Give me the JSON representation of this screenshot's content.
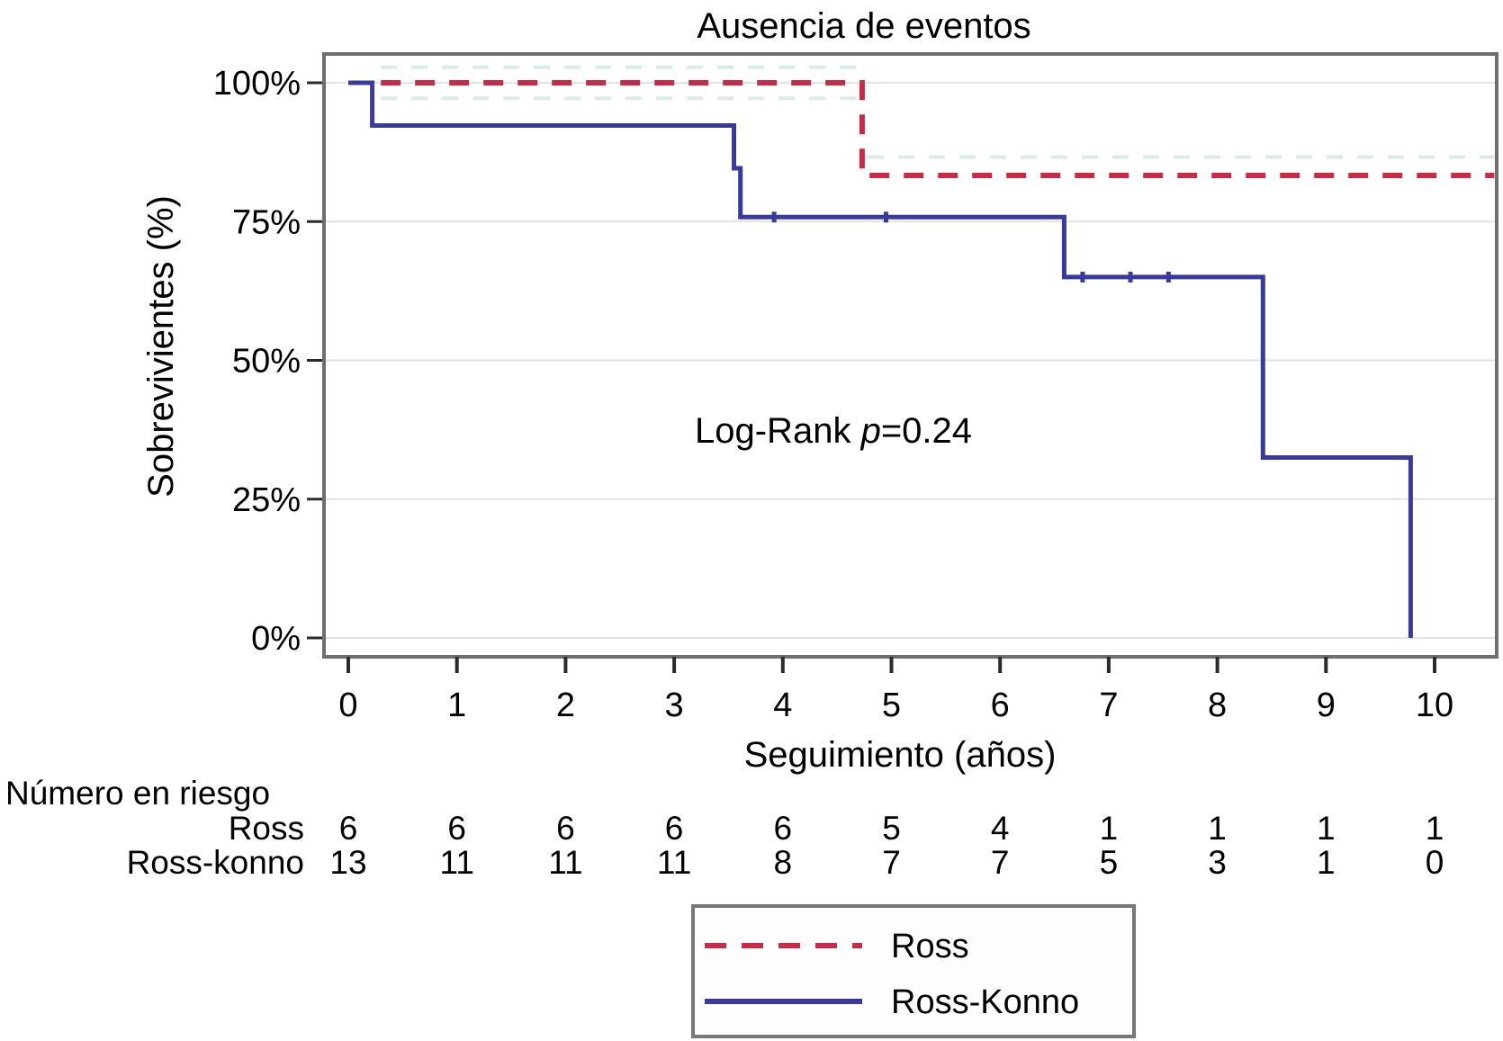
{
  "figure": {
    "title": "Ausencia de eventos"
  },
  "axes": {
    "x": {
      "label": "Seguimiento (años)",
      "ticks": [
        "0",
        "1",
        "2",
        "3",
        "4",
        "5",
        "6",
        "7",
        "8",
        "9",
        "10"
      ],
      "range": [
        0,
        10.55
      ]
    },
    "y": {
      "label": "Sobrevivientes (%)",
      "ticks": [
        {
          "label": "100%",
          "value": 100
        },
        {
          "label": "75%",
          "value": 75
        },
        {
          "label": "50%",
          "value": 50
        },
        {
          "label": "25%",
          "value": 25
        },
        {
          "label": "0%",
          "value": 0
        }
      ],
      "range": [
        0,
        100
      ]
    }
  },
  "annotation": {
    "prefix": "Log-Rank ",
    "symbol": "p",
    "suffix": "=0.24"
  },
  "chart_data": {
    "type": "line",
    "subtype": "kaplan-meier-step",
    "xlabel": "Seguimiento (años)",
    "ylabel": "Sobrevivientes (%)",
    "xlim": [
      0,
      10.55
    ],
    "ylim": [
      0,
      100
    ],
    "grid": true,
    "series": [
      {
        "name": "Ross",
        "style": "dashed",
        "color": "#c92a47",
        "points": [
          [
            0.3,
            100
          ],
          [
            4.73,
            100
          ],
          [
            4.73,
            83.3
          ],
          [
            10.55,
            83.3
          ]
        ],
        "censor_marks": []
      },
      {
        "name": "Ross-Konno",
        "style": "solid",
        "color": "#393a9b",
        "points": [
          [
            0,
            100
          ],
          [
            0.22,
            100
          ],
          [
            0.22,
            92.3
          ],
          [
            3.55,
            92.3
          ],
          [
            3.55,
            84.6
          ],
          [
            3.61,
            84.6
          ],
          [
            3.61,
            75.8
          ],
          [
            6.59,
            75.8
          ],
          [
            6.59,
            65
          ],
          [
            8.42,
            65
          ],
          [
            8.42,
            32.5
          ],
          [
            9.78,
            32.5
          ],
          [
            9.78,
            0
          ]
        ],
        "censor_marks": [
          [
            3.92,
            75.8
          ],
          [
            4.95,
            75.8
          ],
          [
            6.76,
            65
          ],
          [
            7.2,
            65
          ],
          [
            7.55,
            65
          ]
        ]
      }
    ],
    "confidence_bands": [
      {
        "series": "Ross",
        "from": 0.3,
        "to": 4.73,
        "level": 102.8
      },
      {
        "series": "Ross",
        "from": 0.3,
        "to": 4.73,
        "level": 97.2
      },
      {
        "series": "Ross",
        "from": 4.78,
        "to": 10.55,
        "level": 86.6
      }
    ]
  },
  "risk_table": {
    "title": "Número en riesgo",
    "rows": [
      {
        "label": "Ross",
        "values": [
          "6",
          "6",
          "6",
          "6",
          "6",
          "5",
          "4",
          "1",
          "1",
          "1",
          "1"
        ]
      },
      {
        "label": "Ross-konno",
        "values": [
          "13",
          "11",
          "11",
          "11",
          "8",
          "7",
          "7",
          "5",
          "3",
          "1",
          "0"
        ]
      }
    ]
  },
  "legend": {
    "items": [
      {
        "label": "Ross",
        "style": "dashed",
        "color": "#c92a47"
      },
      {
        "label": "Ross-Konno",
        "style": "solid",
        "color": "#393a9b"
      }
    ]
  },
  "colors": {
    "ross": "#c92a47",
    "ross_konno": "#393a9b",
    "confidence_band": "#d9ece8",
    "gridline": "#e2e2e2",
    "plot_border": "#6e6e6e",
    "legend_border": "#787878",
    "tick": "#2b2b2b",
    "text": "#000000",
    "background": "#ffffff"
  }
}
